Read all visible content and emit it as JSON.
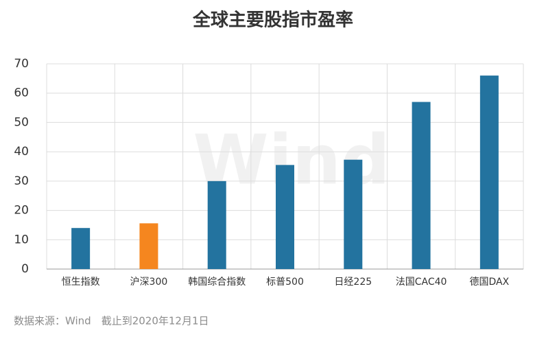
{
  "chart_data": {
    "type": "bar",
    "title": "全球主要股指市盈率",
    "categories": [
      "恒生指数",
      "沪深300",
      "韩国综合指数",
      "标普500",
      "日经225",
      "法国CAC40",
      "德国DAX"
    ],
    "values": [
      14,
      15.6,
      30,
      35.5,
      37.3,
      57,
      66
    ],
    "colors": [
      "#23739f",
      "#f5861f",
      "#23739f",
      "#23739f",
      "#23739f",
      "#23739f",
      "#23739f"
    ],
    "ylim": [
      0,
      70
    ],
    "yticks": [
      0,
      10,
      20,
      30,
      40,
      50,
      60,
      70
    ],
    "grid": true,
    "watermark": "Wind",
    "source": "数据来源：Wind　截止到2020年12月1日"
  }
}
